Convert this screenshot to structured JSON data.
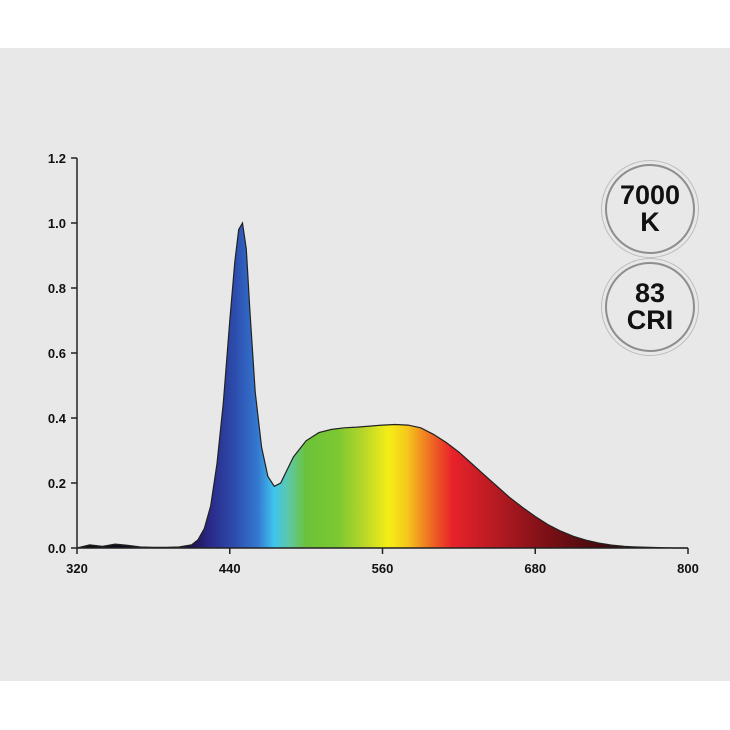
{
  "chart_data": {
    "type": "area",
    "title": "",
    "xlabel": "",
    "ylabel": "",
    "xlim": [
      320,
      800
    ],
    "ylim": [
      0,
      1.2
    ],
    "grid": false,
    "x_ticks": [
      "320",
      "440",
      "560",
      "680",
      "800"
    ],
    "y_ticks": [
      "0.0",
      "0.2",
      "0.4",
      "0.6",
      "0.8",
      "1.0",
      "1.2"
    ],
    "fill": "visible-spectrum gradient",
    "series": [
      {
        "x": [
          320,
          330,
          340,
          350,
          360,
          370,
          380,
          390,
          400,
          410,
          415,
          420,
          425,
          430,
          435,
          440,
          444,
          447,
          450,
          453,
          456,
          460,
          465,
          470,
          475,
          480,
          485,
          490,
          500,
          510,
          520,
          530,
          540,
          550,
          560,
          570,
          580,
          590,
          600,
          610,
          620,
          630,
          640,
          650,
          660,
          670,
          680,
          690,
          700,
          710,
          720,
          730,
          740,
          750,
          760,
          770,
          780,
          790,
          800
        ],
        "y": [
          0.0,
          0.01,
          0.005,
          0.012,
          0.008,
          0.003,
          0.002,
          0.002,
          0.003,
          0.01,
          0.025,
          0.06,
          0.13,
          0.26,
          0.45,
          0.7,
          0.88,
          0.98,
          1.0,
          0.92,
          0.72,
          0.48,
          0.31,
          0.22,
          0.19,
          0.2,
          0.24,
          0.28,
          0.33,
          0.355,
          0.365,
          0.37,
          0.372,
          0.375,
          0.378,
          0.38,
          0.378,
          0.37,
          0.35,
          0.325,
          0.295,
          0.26,
          0.225,
          0.19,
          0.155,
          0.125,
          0.097,
          0.072,
          0.052,
          0.036,
          0.024,
          0.015,
          0.009,
          0.005,
          0.003,
          0.002,
          0.001,
          0.0,
          0.0
        ]
      }
    ]
  },
  "badges": {
    "cct_value": "7000",
    "cct_unit": "K",
    "cri_value": "83",
    "cri_unit": "CRI"
  }
}
